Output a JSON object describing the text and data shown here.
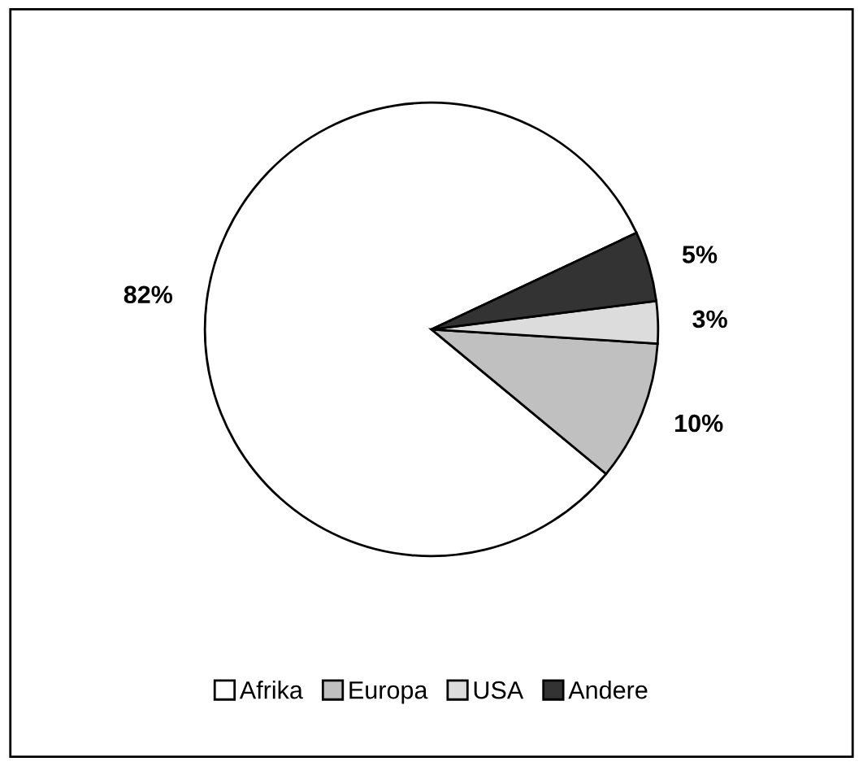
{
  "chart_data": {
    "type": "pie",
    "categories": [
      "Afrika",
      "Europa",
      "USA",
      "Andere"
    ],
    "values": [
      82,
      10,
      3,
      5
    ],
    "colors": [
      "#ffffff",
      "#c0c0c0",
      "#dcdcdc",
      "#333333"
    ],
    "value_labels": [
      "82%",
      "10%",
      "3%",
      "5%"
    ],
    "legend": "bottom"
  }
}
